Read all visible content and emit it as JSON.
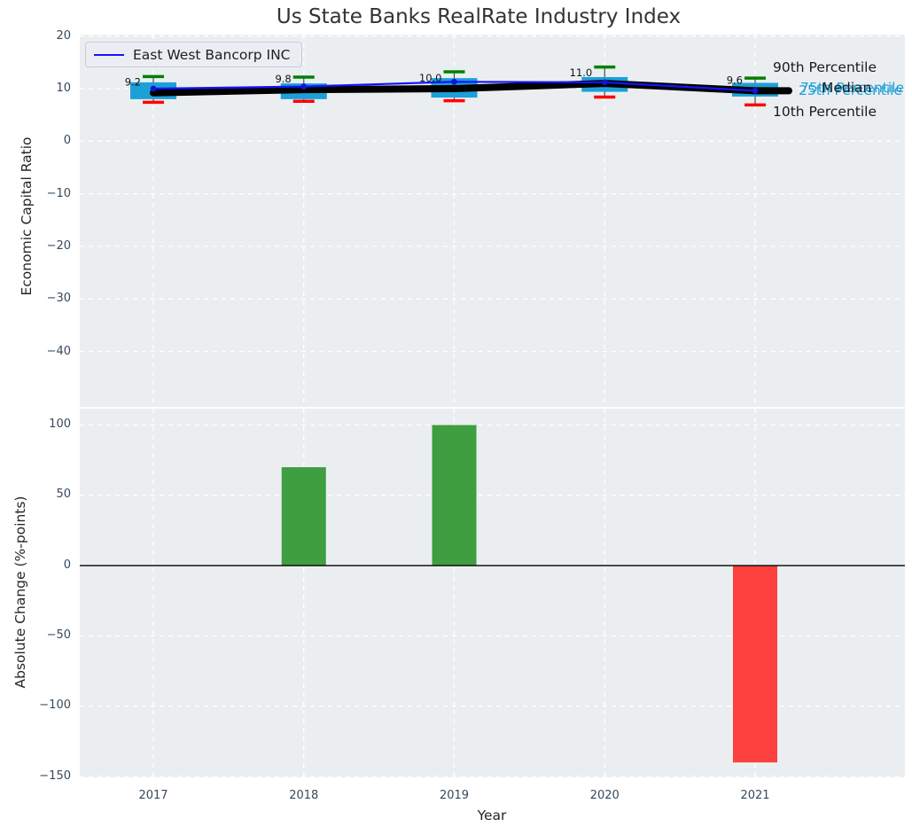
{
  "figure": {
    "title": "Us State Banks RealRate Industry Index",
    "plot_background": "#EBEEF1"
  },
  "legend": {
    "label": "East West Bancorp INC",
    "line_color": "#1414FF"
  },
  "annotations": {
    "p90": {
      "label": "90th Percentile",
      "color": "#1a1a1a"
    },
    "p75": {
      "label": "75th Percentile",
      "color": "#1BA0D7"
    },
    "median": {
      "label": "Median",
      "color": "#1a1a1a"
    },
    "p25": {
      "label": "25th Percentile",
      "color": "#1BA0D7"
    },
    "p10": {
      "label": "10th Percentile",
      "color": "#1a1a1a"
    }
  },
  "chart_data": [
    {
      "type": "box",
      "title": "Us State Banks RealRate Industry Index",
      "ylabel": "Economic Capital Ratio",
      "categories": [
        "2017",
        "2018",
        "2019",
        "2020",
        "2021"
      ],
      "yticks": [
        20,
        10,
        0,
        -10,
        -20,
        -30,
        -40
      ],
      "ylim": [
        -50.7,
        20
      ],
      "grid": true,
      "legend_position": "upper left",
      "boxes": [
        {
          "year": "2017",
          "p10": 7.4,
          "p25": 8.0,
          "median": 9.2,
          "p75": 11.2,
          "p90": 12.3
        },
        {
          "year": "2018",
          "p10": 7.6,
          "p25": 8.0,
          "median": 9.8,
          "p75": 11.0,
          "p90": 12.2
        },
        {
          "year": "2019",
          "p10": 7.7,
          "p25": 8.3,
          "median": 10.0,
          "p75": 12.0,
          "p90": 13.2
        },
        {
          "year": "2020",
          "p10": 8.4,
          "p25": 9.4,
          "median": 11.0,
          "p75": 12.2,
          "p90": 14.1
        },
        {
          "year": "2021",
          "p10": 6.9,
          "p25": 8.5,
          "median": 9.6,
          "p75": 11.1,
          "p90": 12.0
        }
      ],
      "median_labels": [
        "9.2",
        "9.8",
        "10.0",
        "11.0",
        "9.6"
      ],
      "series": [
        {
          "name": "East West Bancorp INC",
          "values": [
            10.0,
            10.4,
            11.3,
            11.2,
            9.6
          ],
          "color": "#1414FF"
        }
      ],
      "colors": {
        "box": "#1BA0D7",
        "cap_top": "#008000",
        "cap_bottom": "#FF0000",
        "median_line": "#000000",
        "whisker": "#4d4d4d"
      }
    },
    {
      "type": "bar",
      "ylabel": "Absolute Change (%-points)",
      "xlabel": "Year",
      "categories": [
        "2017",
        "2018",
        "2019",
        "2020",
        "2021"
      ],
      "values": [
        0,
        70,
        100,
        0,
        -140
      ],
      "yticks": [
        100,
        50,
        0,
        -50,
        -100,
        -150
      ],
      "ylim": [
        -151,
        112
      ],
      "grid": true,
      "colors": {
        "positive": "#3E9E40",
        "negative": "#FC413E",
        "zero_line": "#000000"
      }
    }
  ]
}
